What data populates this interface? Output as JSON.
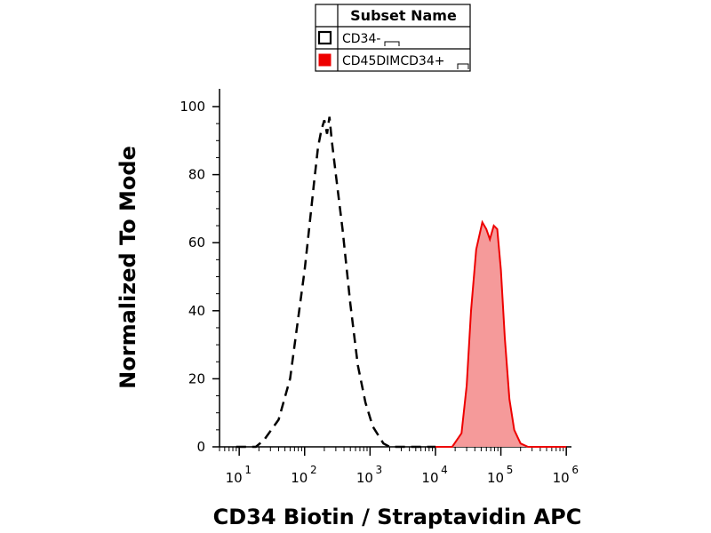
{
  "chart_data": {
    "type": "area",
    "title": "",
    "xlabel": "CD34 Biotin / Straptavidin APC",
    "ylabel": "Normalized To Mode",
    "x_scale": "log",
    "xlim": [
      5,
      1200000
    ],
    "ylim": [
      0,
      100
    ],
    "y_ticks": [
      "0",
      "20",
      "40",
      "60",
      "80",
      "100"
    ],
    "x_tick_labels": [
      {
        "base": "10",
        "exp": "1"
      },
      {
        "base": "10",
        "exp": "2"
      },
      {
        "base": "10",
        "exp": "3"
      },
      {
        "base": "10",
        "exp": "4"
      },
      {
        "base": "10",
        "exp": "5"
      },
      {
        "base": "10",
        "exp": "6"
      }
    ],
    "legend": {
      "header": "Subset Name",
      "placement": "top-center",
      "entries": [
        {
          "label": "CD34-",
          "style": "dashed-outline",
          "color": "#000000"
        },
        {
          "label": "CD45DIMCD34+",
          "style": "filled",
          "color": "#ee0000"
        }
      ]
    },
    "series": [
      {
        "name": "CD34-",
        "style": "dashed",
        "color": "#000000",
        "points": [
          [
            9,
            0
          ],
          [
            18,
            0
          ],
          [
            24,
            2
          ],
          [
            40,
            8
          ],
          [
            60,
            20
          ],
          [
            80,
            38
          ],
          [
            100,
            52
          ],
          [
            120,
            66
          ],
          [
            140,
            78
          ],
          [
            160,
            88
          ],
          [
            180,
            93
          ],
          [
            200,
            96
          ],
          [
            220,
            92
          ],
          [
            240,
            97
          ],
          [
            260,
            90
          ],
          [
            300,
            80
          ],
          [
            380,
            64
          ],
          [
            500,
            42
          ],
          [
            650,
            24
          ],
          [
            850,
            13
          ],
          [
            1100,
            6
          ],
          [
            1600,
            1
          ],
          [
            2000,
            0
          ],
          [
            10000,
            0
          ]
        ]
      },
      {
        "name": "CD45DIMCD34+",
        "style": "filled",
        "color": "#ee0000",
        "fill": "#f59a9a",
        "points": [
          [
            10000,
            0
          ],
          [
            18000,
            0
          ],
          [
            25000,
            4
          ],
          [
            30000,
            18
          ],
          [
            35000,
            40
          ],
          [
            42000,
            58
          ],
          [
            52000,
            66
          ],
          [
            60000,
            64
          ],
          [
            68000,
            61
          ],
          [
            78000,
            65
          ],
          [
            88000,
            64
          ],
          [
            100000,
            52
          ],
          [
            115000,
            32
          ],
          [
            135000,
            14
          ],
          [
            160000,
            5
          ],
          [
            200000,
            1
          ],
          [
            260000,
            0
          ],
          [
            1000000,
            0
          ]
        ]
      }
    ]
  }
}
